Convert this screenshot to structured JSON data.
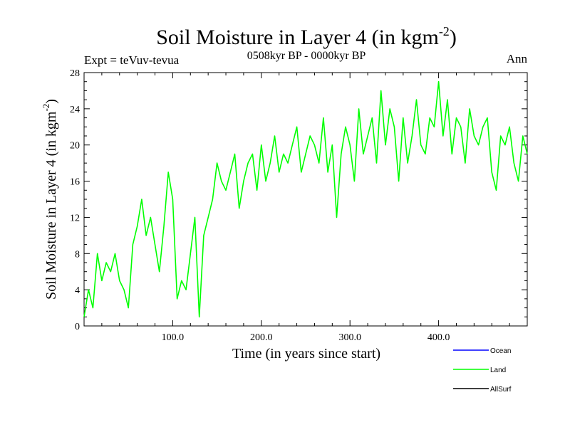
{
  "chart_data": {
    "type": "line",
    "title": "Soil Moisture in Layer 4 (in kgm",
    "title_sup": "-2",
    "title_close": ")",
    "subtitle": "0508kyr BP - 0000kyr BP",
    "expt_label": "Expt = teVuv-tevua",
    "season_label": "Ann",
    "xlabel": "Time (in years since start)",
    "ylabel": "Soil Moisture in Layer 4 (in kgm",
    "ylabel_sup": "-2",
    "ylabel_close": ")",
    "xlim": [
      0,
      500
    ],
    "ylim": [
      0,
      28
    ],
    "x_ticks": [
      100,
      200,
      300,
      400
    ],
    "x_tick_labels": [
      "100.0",
      "200.0",
      "300.0",
      "400.0"
    ],
    "y_ticks": [
      0,
      4,
      8,
      12,
      16,
      20,
      24,
      28
    ],
    "y_tick_labels": [
      "0",
      "4",
      "8",
      "12",
      "16",
      "20",
      "24",
      "28"
    ],
    "legend_position": "bottom-right",
    "series": [
      {
        "name": "Ocean",
        "color": "#0000ff",
        "values": []
      },
      {
        "name": "Land",
        "color": "#00ff00",
        "x": [
          0,
          5,
          10,
          15,
          20,
          25,
          30,
          35,
          40,
          45,
          50,
          55,
          60,
          65,
          70,
          75,
          80,
          85,
          90,
          95,
          100,
          105,
          110,
          115,
          120,
          125,
          130,
          135,
          140,
          145,
          150,
          155,
          160,
          165,
          170,
          175,
          180,
          185,
          190,
          195,
          200,
          205,
          210,
          215,
          220,
          225,
          230,
          235,
          240,
          245,
          250,
          255,
          260,
          265,
          270,
          275,
          280,
          285,
          290,
          295,
          300,
          305,
          310,
          315,
          320,
          325,
          330,
          335,
          340,
          345,
          350,
          355,
          360,
          365,
          370,
          375,
          380,
          385,
          390,
          395,
          400,
          405,
          410,
          415,
          420,
          425,
          430,
          435,
          440,
          445,
          450,
          455,
          460,
          465,
          470,
          475,
          480,
          485,
          490,
          495,
          500
        ],
        "values": [
          1,
          4,
          2,
          8,
          5,
          7,
          6,
          8,
          5,
          4,
          2,
          9,
          11,
          14,
          10,
          12,
          9,
          6,
          11,
          17,
          14,
          3,
          5,
          4,
          8,
          12,
          1,
          10,
          12,
          14,
          18,
          16,
          15,
          17,
          19,
          13,
          16,
          18,
          19,
          15,
          20,
          16,
          18,
          21,
          17,
          19,
          18,
          20,
          22,
          17,
          19,
          21,
          20,
          18,
          23,
          17,
          20,
          12,
          19,
          22,
          20,
          16,
          24,
          19,
          21,
          23,
          18,
          26,
          20,
          24,
          22,
          16,
          23,
          18,
          21,
          25,
          20,
          19,
          23,
          22,
          27,
          21,
          25,
          19,
          23,
          22,
          18,
          24,
          21,
          20,
          22,
          23,
          17,
          15,
          21,
          20,
          22,
          18,
          16,
          21,
          19
        ]
      },
      {
        "name": "AllSurf",
        "color": "#000000",
        "values": []
      }
    ]
  }
}
